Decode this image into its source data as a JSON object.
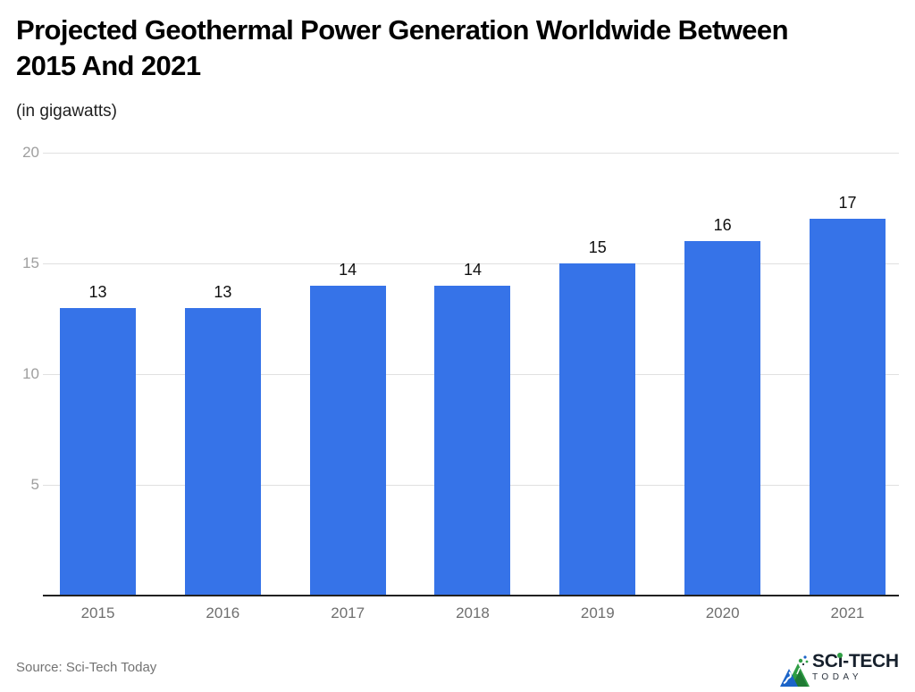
{
  "page": {
    "title_line1": "Projected Geothermal Power Generation Worldwide Between",
    "title_line2": "2015 And 2021",
    "subtitle": "(in gigawatts)",
    "source": "Source: Sci-Tech Today"
  },
  "logo": {
    "name_pre": "SC",
    "name_i": "i",
    "name_post": "-TECH",
    "subtitle": "TODAY",
    "icon": "sci-tech-today-mountain-icon",
    "green": "#2f9e44",
    "blue": "#1b64c8",
    "text_color": "#16202c"
  },
  "chart_data": {
    "type": "bar",
    "title": "Projected Geothermal Power Generation Worldwide Between 2015 And 2021",
    "subtitle": "(in gigawatts)",
    "categories": [
      "2015",
      "2016",
      "2017",
      "2018",
      "2019",
      "2020",
      "2021"
    ],
    "values": [
      13,
      13,
      14,
      14,
      15,
      16,
      17
    ],
    "xlabel": "",
    "ylabel": "gigawatts",
    "ylim": [
      0,
      20
    ],
    "yticks": [
      5,
      10,
      15,
      20
    ],
    "grid": true,
    "legend": "none",
    "bar_color": "#3673E8",
    "gridline_color": "#e0e0e0",
    "axis_line_color": "#212121",
    "ytick_color": "#9e9e9e",
    "xtick_color": "#6f6f6f",
    "value_label_color": "#0f0f0f"
  }
}
